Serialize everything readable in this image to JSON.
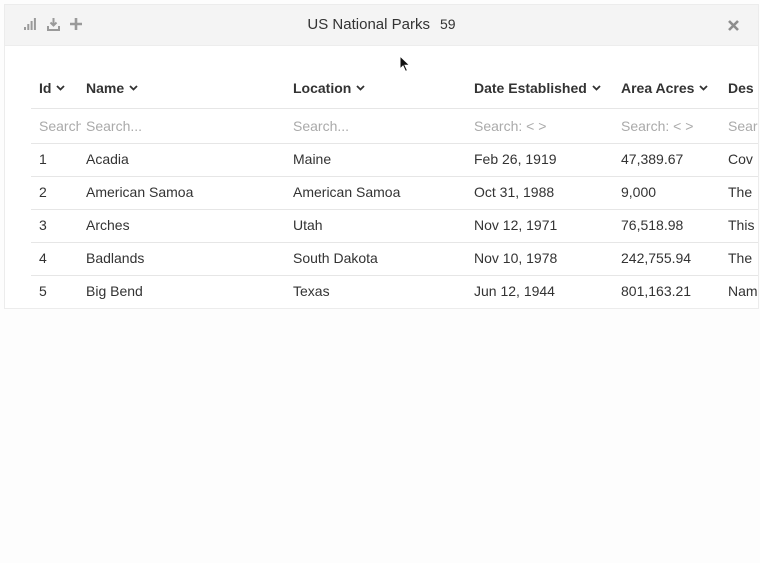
{
  "window": {
    "title": "US National Parks",
    "count": "59",
    "toolbar_icons": [
      "bar-chart-icon",
      "download-icon",
      "plus-icon"
    ],
    "close_icon": "close-icon"
  },
  "table": {
    "columns": [
      {
        "label": "Id",
        "placeholder": "Search..."
      },
      {
        "label": "Name",
        "placeholder": "Search..."
      },
      {
        "label": "Location",
        "placeholder": "Search..."
      },
      {
        "label": "Date Established",
        "placeholder": "Search: < >"
      },
      {
        "label": "Area Acres",
        "placeholder": "Search: < >"
      },
      {
        "label": "Des",
        "placeholder": "Search..."
      }
    ],
    "rows": [
      [
        "1",
        "Acadia",
        "Maine",
        "Feb 26, 1919",
        "47,389.67",
        "Cov"
      ],
      [
        "2",
        "American Samoa",
        "American Samoa",
        "Oct 31, 1988",
        "9,000",
        "The"
      ],
      [
        "3",
        "Arches",
        "Utah",
        "Nov 12, 1971",
        "76,518.98",
        "This"
      ],
      [
        "4",
        "Badlands",
        "South Dakota",
        "Nov 10, 1978",
        "242,755.94",
        "The"
      ],
      [
        "5",
        "Big Bend",
        "Texas",
        "Jun 12, 1944",
        "801,163.21",
        "Nam"
      ]
    ]
  },
  "colors": {
    "titlebar_bg": "#f4f4f4",
    "row_border": "#e6e6e6",
    "placeholder": "#aaaaaa",
    "text": "#333333"
  }
}
